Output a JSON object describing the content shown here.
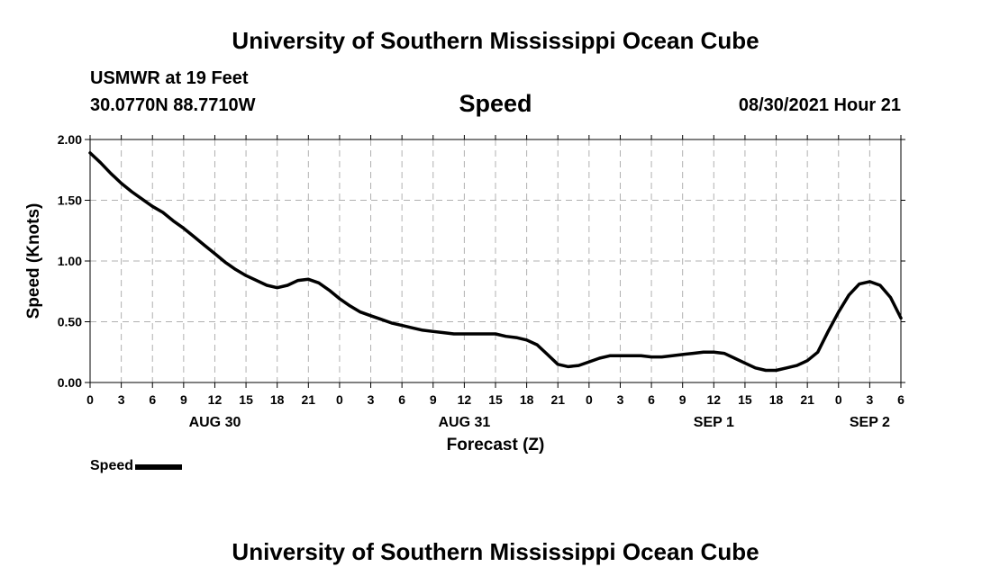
{
  "header": {
    "title": "University of Southern Mississippi Ocean Cube",
    "station": "USMWR at 19 Feet",
    "coords": "30.0770N  88.7710W",
    "chart_title": "Speed",
    "issued": "08/30/2021 Hour 21"
  },
  "footer": {
    "title": "University of Southern Mississippi Ocean Cube"
  },
  "legend": {
    "label": "Speed"
  },
  "colors": {
    "line": "#000000",
    "grid": "#b0b0b0",
    "background": "#ffffff"
  },
  "chart_data": {
    "type": "line",
    "title": "Speed",
    "xlabel": "Forecast (Z)",
    "ylabel": "Speed (Knots)",
    "x_unit": "hours from AUG 30 00Z",
    "xlim": [
      0,
      78
    ],
    "ylim": [
      0,
      2.0
    ],
    "yticks": [
      0,
      0.5,
      1.0,
      1.5,
      2.0
    ],
    "ytick_labels": [
      "0.00",
      "0.50",
      "1.00",
      "1.50",
      "2.00"
    ],
    "xticks": [
      0,
      3,
      6,
      9,
      12,
      15,
      18,
      21,
      24,
      27,
      30,
      33,
      36,
      39,
      42,
      45,
      48,
      51,
      54,
      57,
      60,
      63,
      66,
      69,
      72,
      75,
      78
    ],
    "xtick_labels": [
      "0",
      "3",
      "6",
      "9",
      "12",
      "15",
      "18",
      "21",
      "0",
      "3",
      "6",
      "9",
      "12",
      "15",
      "18",
      "21",
      "0",
      "3",
      "6",
      "9",
      "12",
      "15",
      "18",
      "21",
      "0",
      "3",
      "6"
    ],
    "date_labels": [
      {
        "x": 12,
        "label": "AUG 30"
      },
      {
        "x": 36,
        "label": "AUG 31"
      },
      {
        "x": 60,
        "label": "SEP 1"
      },
      {
        "x": 75,
        "label": "SEP 2"
      }
    ],
    "grid": true,
    "series": [
      {
        "name": "Speed",
        "x": [
          0,
          1,
          2,
          3,
          4,
          5,
          6,
          7,
          8,
          9,
          10,
          11,
          12,
          13,
          14,
          15,
          16,
          17,
          18,
          19,
          20,
          21,
          22,
          23,
          24,
          25,
          26,
          27,
          28,
          29,
          30,
          31,
          32,
          33,
          34,
          35,
          36,
          37,
          38,
          39,
          40,
          41,
          42,
          43,
          44,
          45,
          46,
          47,
          48,
          49,
          50,
          51,
          52,
          53,
          54,
          55,
          56,
          57,
          58,
          59,
          60,
          61,
          62,
          63,
          64,
          65,
          66,
          67,
          68,
          69,
          70,
          71,
          72,
          73,
          74,
          75,
          76,
          77,
          78
        ],
        "values": [
          1.89,
          1.81,
          1.72,
          1.64,
          1.57,
          1.51,
          1.45,
          1.4,
          1.33,
          1.27,
          1.2,
          1.13,
          1.06,
          0.99,
          0.93,
          0.88,
          0.84,
          0.8,
          0.78,
          0.8,
          0.84,
          0.85,
          0.82,
          0.76,
          0.69,
          0.63,
          0.58,
          0.55,
          0.52,
          0.49,
          0.47,
          0.45,
          0.43,
          0.42,
          0.41,
          0.4,
          0.4,
          0.4,
          0.4,
          0.4,
          0.38,
          0.37,
          0.35,
          0.31,
          0.23,
          0.15,
          0.13,
          0.14,
          0.17,
          0.2,
          0.22,
          0.22,
          0.22,
          0.22,
          0.21,
          0.21,
          0.22,
          0.23,
          0.24,
          0.25,
          0.25,
          0.24,
          0.2,
          0.16,
          0.12,
          0.1,
          0.1,
          0.12,
          0.14,
          0.18,
          0.25,
          0.42,
          0.58,
          0.72,
          0.81,
          0.83,
          0.8,
          0.7,
          0.53
        ]
      }
    ]
  }
}
